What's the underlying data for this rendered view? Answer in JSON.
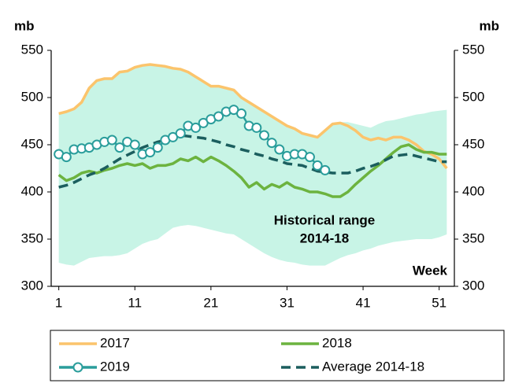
{
  "chart_data": {
    "type": "line",
    "y_label": "mb",
    "y2_label": "mb",
    "x_label": "Week",
    "annotation": [
      "Historical range",
      "2014-18"
    ],
    "x": [
      1,
      2,
      3,
      4,
      5,
      6,
      7,
      8,
      9,
      10,
      11,
      12,
      13,
      14,
      15,
      16,
      17,
      18,
      19,
      20,
      21,
      22,
      23,
      24,
      25,
      26,
      27,
      28,
      29,
      30,
      31,
      32,
      33,
      34,
      35,
      36,
      37,
      38,
      39,
      40,
      41,
      42,
      43,
      44,
      45,
      46,
      47,
      48,
      49,
      50,
      51,
      52
    ],
    "xlim": [
      0,
      53
    ],
    "xticks": [
      1,
      11,
      21,
      31,
      41,
      51
    ],
    "ylim": [
      300,
      550
    ],
    "yticks": [
      300,
      350,
      400,
      450,
      500,
      550
    ],
    "y2lim": [
      300,
      550
    ],
    "y2ticks": [
      300,
      350,
      400,
      450,
      500,
      550
    ],
    "range": {
      "color": "#c8f4e6",
      "high": [
        483,
        485,
        488,
        495,
        510,
        518,
        520,
        520,
        527,
        528,
        532,
        534,
        535,
        534,
        533,
        531,
        530,
        527,
        522,
        517,
        512,
        512,
        510,
        508,
        500,
        495,
        490,
        485,
        480,
        475,
        470,
        467,
        462,
        460,
        458,
        465,
        472,
        474,
        474,
        472,
        470,
        468,
        472,
        475,
        476,
        478,
        480,
        482,
        483,
        485,
        486,
        487
      ],
      "low": [
        325,
        323,
        322,
        326,
        330,
        331,
        332,
        332,
        333,
        335,
        340,
        345,
        348,
        350,
        356,
        362,
        364,
        365,
        364,
        362,
        360,
        358,
        356,
        355,
        350,
        345,
        340,
        335,
        331,
        328,
        326,
        325,
        323,
        322,
        322,
        322,
        326,
        330,
        333,
        335,
        338,
        340,
        343,
        345,
        347,
        348,
        349,
        350,
        350,
        350,
        352,
        355
      ]
    },
    "series": [
      {
        "name": "2017",
        "color": "#fbc46c",
        "style": "solid",
        "values": [
          483,
          485,
          488,
          495,
          510,
          518,
          520,
          520,
          527,
          528,
          532,
          534,
          535,
          534,
          533,
          531,
          530,
          527,
          522,
          517,
          512,
          512,
          510,
          508,
          500,
          495,
          490,
          485,
          480,
          475,
          470,
          467,
          462,
          460,
          458,
          465,
          472,
          473,
          470,
          465,
          458,
          455,
          457,
          455,
          458,
          458,
          455,
          450,
          443,
          440,
          435,
          425
        ]
      },
      {
        "name": "2018",
        "color": "#6cb33f",
        "style": "solid",
        "values": [
          418,
          412,
          415,
          420,
          422,
          420,
          423,
          425,
          428,
          430,
          428,
          430,
          425,
          428,
          428,
          430,
          435,
          433,
          437,
          432,
          437,
          433,
          428,
          422,
          415,
          405,
          410,
          403,
          408,
          405,
          410,
          405,
          403,
          400,
          400,
          398,
          395,
          395,
          400,
          408,
          415,
          422,
          428,
          435,
          442,
          448,
          450,
          445,
          442,
          442,
          440,
          440
        ]
      },
      {
        "name": "2019",
        "color": "#2a9d9b",
        "style": "markers",
        "values": [
          440,
          437,
          445,
          446,
          447,
          450,
          453,
          455,
          447,
          453,
          450,
          440,
          442,
          447,
          455,
          458,
          462,
          470,
          468,
          473,
          477,
          480,
          485,
          487,
          483,
          470,
          468,
          460,
          452,
          445,
          438,
          440,
          440,
          437,
          428,
          423,
          null,
          null,
          null,
          null,
          null,
          null,
          null,
          null,
          null,
          null,
          null,
          null,
          null,
          null,
          null,
          null
        ]
      },
      {
        "name": "Average 2014-18",
        "color": "#1b5e5e",
        "style": "dashed",
        "values": [
          405,
          407,
          410,
          414,
          418,
          421,
          425,
          430,
          435,
          439,
          443,
          447,
          450,
          453,
          455,
          458,
          460,
          459,
          458,
          457,
          455,
          453,
          450,
          448,
          445,
          443,
          440,
          438,
          435,
          433,
          430,
          429,
          428,
          425,
          422,
          421,
          420,
          420,
          420,
          422,
          425,
          427,
          430,
          434,
          438,
          439,
          440,
          438,
          436,
          434,
          432,
          432
        ]
      }
    ]
  }
}
